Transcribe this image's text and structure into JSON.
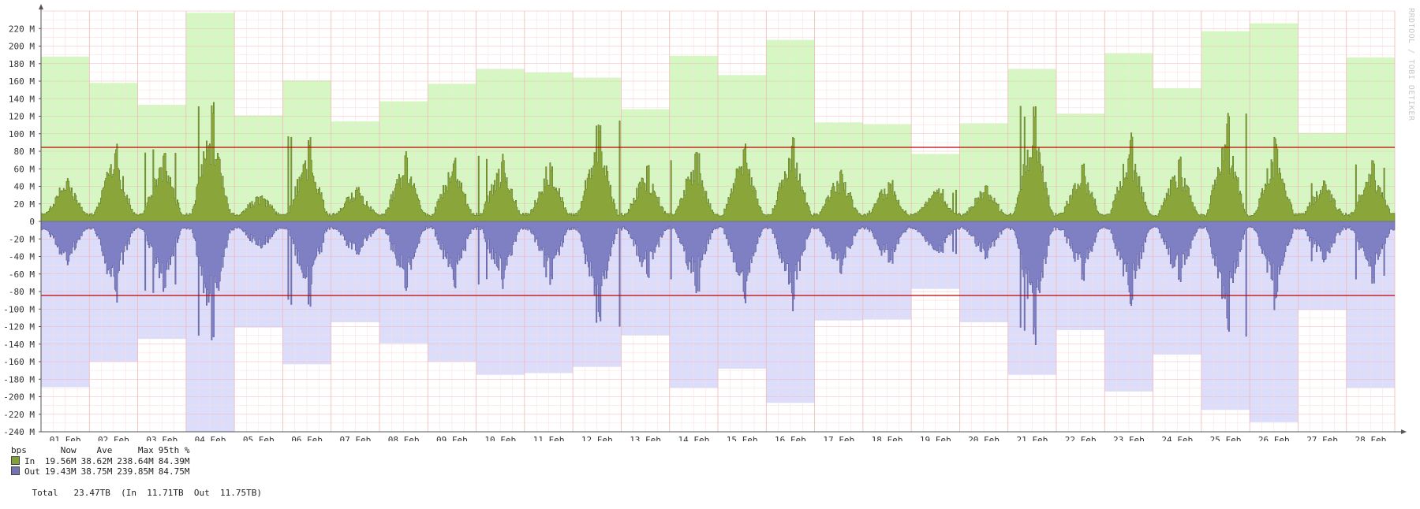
{
  "chart_data": {
    "type": "area",
    "ylabel": "bps",
    "ylim": [
      -240,
      240
    ],
    "y_unit": "M",
    "y_ticks": [
      220,
      200,
      180,
      160,
      140,
      120,
      100,
      80,
      60,
      40,
      20,
      0,
      -20,
      -40,
      -60,
      -80,
      -100,
      -120,
      -140,
      -160,
      -180,
      -200,
      -220,
      -240
    ],
    "x_ticks": [
      "01 Feb",
      "02 Feb",
      "03 Feb",
      "04 Feb",
      "05 Feb",
      "06 Feb",
      "07 Feb",
      "08 Feb",
      "09 Feb",
      "10 Feb",
      "11 Feb",
      "12 Feb",
      "13 Feb",
      "14 Feb",
      "15 Feb",
      "16 Feb",
      "17 Feb",
      "18 Feb",
      "19 Feb",
      "20 Feb",
      "21 Feb",
      "22 Feb",
      "23 Feb",
      "24 Feb",
      "25 Feb",
      "26 Feb",
      "27 Feb",
      "28 Feb"
    ],
    "percentile_95": 84.5,
    "daily_max_in": [
      188,
      158,
      133,
      238,
      121,
      161,
      114,
      137,
      157,
      174,
      170,
      164,
      128,
      189,
      167,
      207,
      113,
      111,
      77,
      112,
      174,
      123,
      192,
      152,
      217,
      226,
      101,
      187
    ],
    "daily_max_out": [
      -189,
      -160,
      -134,
      -240,
      -121,
      -163,
      -115,
      -139,
      -160,
      -175,
      -173,
      -166,
      -130,
      -190,
      -168,
      -207,
      -113,
      -112,
      -77,
      -115,
      -175,
      -124,
      -194,
      -152,
      -215,
      -229,
      -101,
      -190
    ],
    "daily_peak_in": [
      53,
      90,
      84,
      136,
      30,
      97,
      40,
      80,
      77,
      78,
      67,
      119,
      66,
      80,
      92,
      101,
      62,
      48,
      38,
      42,
      133,
      67,
      104,
      76,
      124,
      97,
      48,
      70
    ],
    "series": [
      {
        "name": "In",
        "color": "#8aa63a",
        "fill_light": "#d5f8c3"
      },
      {
        "name": "Out",
        "color": "#7f80c4",
        "fill_light": "#dcdcfb"
      }
    ]
  },
  "watermark": "RRDTOOL / TOBI OETIKER",
  "legend": {
    "header": {
      "unit": "bps",
      "now": "Now",
      "ave": "Ave",
      "max": "Max",
      "p95": "95th %"
    },
    "rows": [
      {
        "label": "In",
        "now": "19.56M",
        "ave": "38.62M",
        "max": "238.64M",
        "p95": "84.39M",
        "color": "#80a03a"
      },
      {
        "label": "Out",
        "now": "19.43M",
        "ave": "38.75M",
        "max": "239.85M",
        "p95": "84.75M",
        "color": "#7474b0"
      }
    ],
    "total": {
      "label": "Total",
      "value": "23.47TB",
      "in_label": "(In",
      "in_value": "11.71TB",
      "out_label": "Out",
      "out_value": "11.75TB)"
    }
  }
}
